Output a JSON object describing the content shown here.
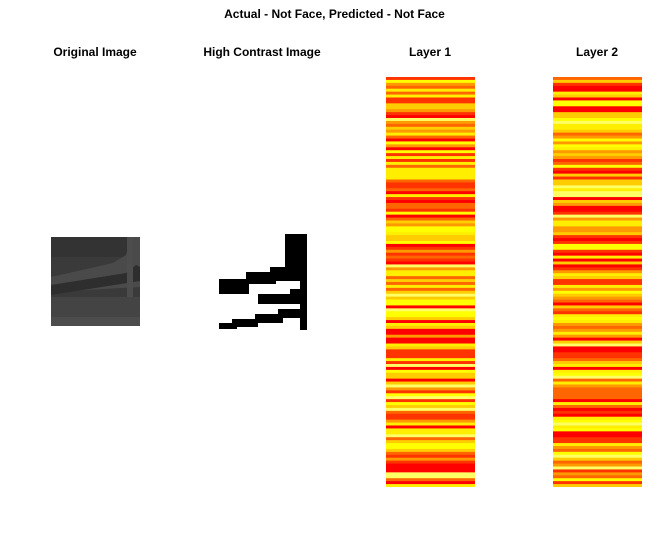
{
  "figure": {
    "title": "Actual - Not Face, Predicted - Not Face"
  },
  "chart_data": [
    {
      "type": "heatmap",
      "title": "Original Image",
      "colormap": "gray",
      "description": "grayscale patch with darker background and lighter diagonal bands"
    },
    {
      "type": "heatmap",
      "title": "High Contrast Image",
      "colormap": "binary"
    },
    {
      "type": "heatmap",
      "title": "Layer 1",
      "colormap": "hot",
      "rows": 140,
      "seed": 17
    },
    {
      "type": "heatmap",
      "title": "Layer 2",
      "colormap": "hot",
      "rows": 140,
      "seed": 91
    }
  ]
}
